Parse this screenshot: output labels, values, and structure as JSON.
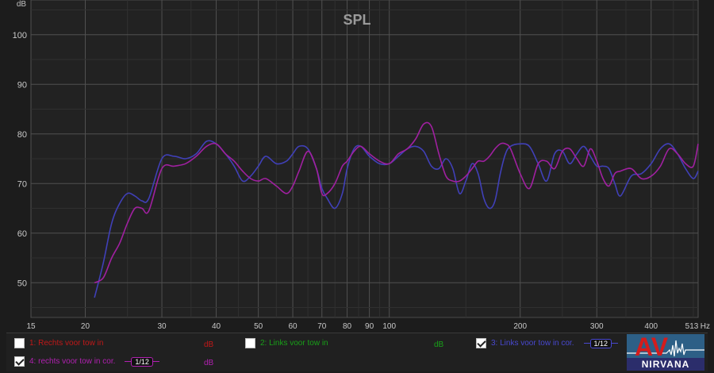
{
  "chart_data": {
    "type": "line",
    "title": "SPL",
    "ylabel": "dB",
    "xlabel": "Hz",
    "x_scale": "log",
    "xlim": [
      15,
      513
    ],
    "ylim": [
      43,
      107
    ],
    "yticks": [
      50,
      60,
      70,
      80,
      90,
      100
    ],
    "xticks": [
      15,
      20,
      30,
      40,
      50,
      60,
      70,
      80,
      90,
      100,
      200,
      300,
      400,
      513
    ],
    "xtick_labels": [
      "15",
      "20",
      "30",
      "40",
      "50",
      "60",
      "70",
      "80",
      "90",
      "100",
      "200",
      "300",
      "400",
      "513"
    ],
    "grid": true,
    "series": [
      {
        "name": "3: Links voor tow in cor.",
        "color": "#4040b8",
        "x": [
          21,
          22,
          23,
          24,
          25,
          26,
          27,
          28,
          30,
          32,
          34,
          36,
          38,
          40,
          42,
          44,
          46,
          48,
          50,
          52,
          55,
          58,
          60,
          62,
          65,
          68,
          70,
          72,
          75,
          78,
          80,
          83,
          86,
          90,
          95,
          100,
          105,
          110,
          115,
          120,
          125,
          130,
          135,
          140,
          145,
          150,
          155,
          160,
          165,
          170,
          175,
          180,
          185,
          190,
          200,
          210,
          220,
          230,
          240,
          250,
          260,
          270,
          280,
          290,
          300,
          310,
          320,
          330,
          340,
          360,
          380,
          400,
          420,
          440,
          460,
          480,
          500,
          513
        ],
        "y": [
          47,
          54,
          62,
          66,
          68,
          67.5,
          66.5,
          67,
          75,
          75.5,
          75,
          76,
          78.5,
          78,
          76,
          73.5,
          70.5,
          71.5,
          73.5,
          75.5,
          74,
          74.5,
          76,
          77.5,
          77,
          73,
          69,
          67,
          65,
          68,
          73,
          77,
          77.5,
          75.5,
          74,
          74,
          75.5,
          77,
          77.5,
          76.5,
          73.5,
          73,
          75,
          73,
          68,
          70.5,
          74,
          72,
          67,
          65,
          66.5,
          72,
          76,
          77.5,
          78,
          77.5,
          74,
          70.5,
          76,
          76.5,
          74,
          76,
          77.5,
          75.5,
          73.5,
          73.5,
          73,
          70,
          67.5,
          71.5,
          72,
          74,
          77,
          78,
          76,
          73,
          71,
          72.5
        ]
      },
      {
        "name": "4: rechts voor tow in cor.",
        "color": "#a020a0",
        "x": [
          21,
          22,
          23,
          24,
          25,
          26,
          27,
          28,
          30,
          32,
          34,
          36,
          38,
          40,
          42,
          44,
          46,
          48,
          50,
          52,
          55,
          58,
          60,
          62,
          65,
          68,
          70,
          72,
          75,
          78,
          80,
          83,
          86,
          90,
          95,
          100,
          105,
          110,
          115,
          120,
          125,
          130,
          135,
          140,
          145,
          150,
          155,
          160,
          165,
          170,
          175,
          180,
          185,
          190,
          200,
          210,
          220,
          230,
          240,
          250,
          260,
          270,
          280,
          290,
          300,
          310,
          320,
          330,
          340,
          360,
          380,
          400,
          420,
          440,
          460,
          480,
          500,
          513
        ],
        "y": [
          50,
          51,
          55,
          58,
          62,
          65,
          65,
          64.5,
          73,
          73.5,
          74,
          75.5,
          77.5,
          78,
          76,
          74.5,
          72.5,
          71,
          70.5,
          71,
          69.5,
          68,
          69.5,
          72.5,
          76.5,
          73,
          68,
          68,
          70,
          73.5,
          74.5,
          76.5,
          77.5,
          76,
          74.5,
          74,
          76,
          77,
          79,
          82,
          81.5,
          76,
          71.5,
          70.5,
          70.5,
          71.5,
          73,
          74.5,
          74.5,
          75.5,
          77,
          78,
          78,
          77,
          72,
          69,
          74,
          74.5,
          73,
          76.5,
          77,
          75,
          73.5,
          77,
          74.5,
          71,
          69.5,
          72,
          72.5,
          73,
          71,
          71.5,
          73.5,
          77,
          76,
          74,
          73.5,
          78
        ]
      }
    ]
  },
  "legend": {
    "items": [
      {
        "label": "1: Rechts voor tow in",
        "unit": "dB",
        "checked": false,
        "color": "#c01818",
        "smoothing": ""
      },
      {
        "label": "2: Links voor tow in",
        "unit": "dB",
        "checked": false,
        "color": "#18a018",
        "smoothing": ""
      },
      {
        "label": "3: Links voor tow in cor.",
        "unit": "",
        "checked": true,
        "color": "#4040c8",
        "smoothing": "1/12"
      },
      {
        "label": "4: rechts voor tow in cor.",
        "unit": "dB",
        "checked": true,
        "color": "#b020b0",
        "smoothing": "1/12"
      }
    ]
  },
  "logo": {
    "top": "AV",
    "bottom": "NIRVANA"
  }
}
